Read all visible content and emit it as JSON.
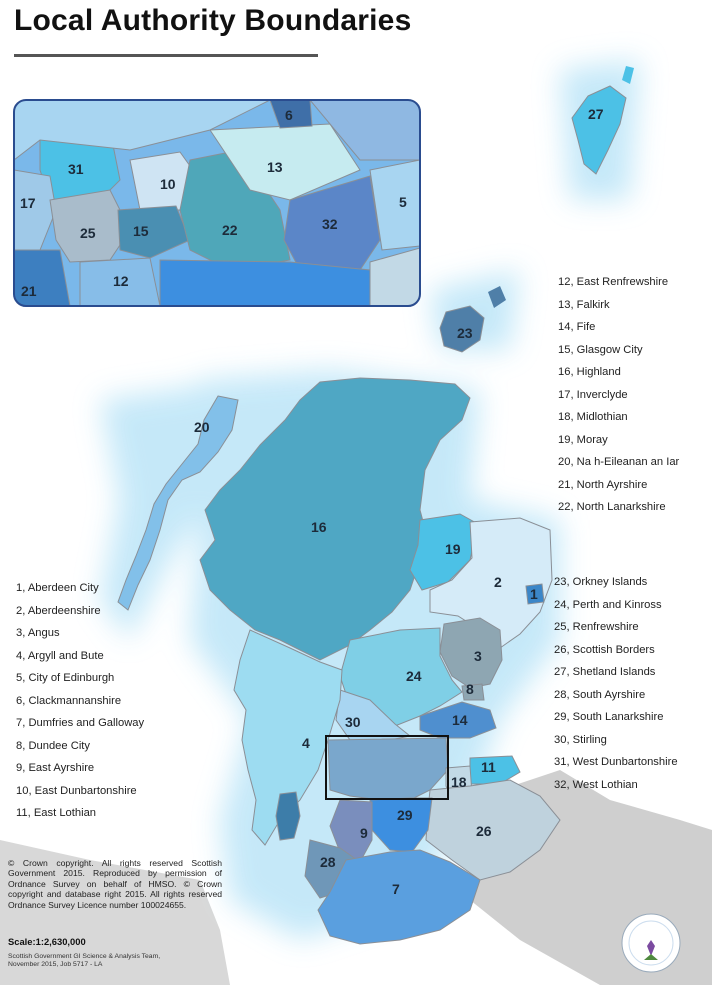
{
  "title": "Local Authority Boundaries",
  "colors": {
    "sea_glow": "#dff1fb",
    "land_neighbour": "#cfcfcf",
    "boundary": "#8a8f96",
    "inset_border": "#2a4c8f",
    "extent_box": "#111111"
  },
  "map": {
    "labels": [
      "1",
      "2",
      "3",
      "4",
      "7",
      "8",
      "9",
      "11",
      "14",
      "16",
      "18",
      "19",
      "20",
      "23",
      "24",
      "26",
      "27",
      "28",
      "29",
      "30"
    ],
    "inset_labels": [
      "5",
      "6",
      "10",
      "12",
      "13",
      "15",
      "17",
      "21",
      "22",
      "25",
      "31",
      "32"
    ]
  },
  "legend_left": [
    "1, Aberdeen City",
    "2, Aberdeenshire",
    "3, Angus",
    "4, Argyll and Bute",
    "5, City of Edinburgh",
    "6, Clackmannanshire",
    "7, Dumfries and Galloway",
    "8, Dundee City",
    "9, East Ayrshire",
    "10, East Dunbartonshire",
    "11, East Lothian"
  ],
  "legend_right_top": [
    "12, East Renfrewshire",
    "13, Falkirk",
    "14, Fife",
    "15, Glasgow City",
    "16, Highland",
    "17, Inverclyde",
    "18, Midlothian",
    "19, Moray",
    "20, Na h-Eileanan an Iar",
    "21, North Ayrshire",
    "22, North Lanarkshire"
  ],
  "legend_right_bottom": [
    "23, Orkney Islands",
    "24, Perth and Kinross",
    "25, Renfrewshire",
    "26, Scottish Borders",
    "27, Shetland Islands",
    "28, South Ayrshire",
    "29, South Lanarkshire",
    "30, Stirling",
    "31, West Dunbartonshire",
    "32, West Lothian"
  ],
  "copyright": "© Crown copyright. All rights reserved Scottish Government 2015. Reproduced by permission of Ordnance Survey on behalf of HMSO. © Crown copyright and database right 2015. All rights reserved Ordnance Survey Licence number 100024655.",
  "scale": "Scale:1:2,630,000",
  "credit": "Scottish Government GI Science & Analysis Team, November 2015, Job 5717 - LA",
  "logo_icon": "geographic-information-logo-icon"
}
